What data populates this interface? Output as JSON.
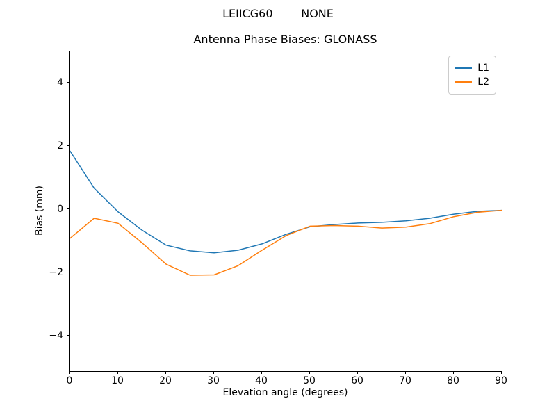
{
  "chart_data": {
    "type": "line",
    "suptitle": "LEIICG60        NONE",
    "title": "Antenna Phase Biases: GLONASS",
    "xlabel": "Elevation angle (degrees)",
    "ylabel": "Bias (mm)",
    "xlim": [
      0,
      90
    ],
    "ylim": [
      -5.1,
      5.0
    ],
    "xticks": [
      0,
      10,
      20,
      30,
      40,
      50,
      60,
      70,
      80,
      90
    ],
    "yticks": [
      -4,
      -2,
      0,
      2,
      4
    ],
    "grid": false,
    "legend_position": "upper right",
    "x": [
      0,
      5,
      10,
      15,
      20,
      25,
      30,
      35,
      40,
      45,
      50,
      55,
      60,
      65,
      70,
      75,
      80,
      85,
      90
    ],
    "series": [
      {
        "name": "L1",
        "color": "#1f77b4",
        "values": [
          1.85,
          0.68,
          -0.07,
          -0.65,
          -1.12,
          -1.3,
          -1.36,
          -1.28,
          -1.08,
          -0.78,
          -0.54,
          -0.47,
          -0.42,
          -0.4,
          -0.35,
          -0.27,
          -0.14,
          -0.05,
          -0.02
        ]
      },
      {
        "name": "L2",
        "color": "#ff7f0e",
        "values": [
          -0.9,
          -0.27,
          -0.43,
          -1.05,
          -1.72,
          -2.07,
          -2.06,
          -1.77,
          -1.28,
          -0.82,
          -0.52,
          -0.5,
          -0.52,
          -0.58,
          -0.55,
          -0.44,
          -0.22,
          -0.08,
          -0.02
        ]
      }
    ]
  }
}
